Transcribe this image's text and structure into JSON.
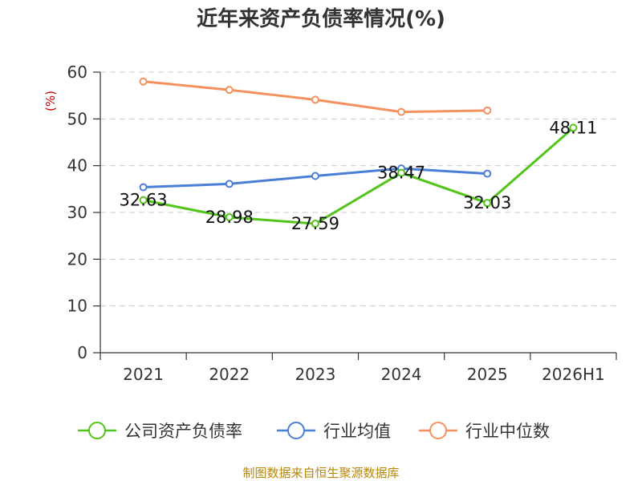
{
  "chart_data": {
    "type": "line",
    "title": "近年来资产负债率情况(%)",
    "unit_label": "(%)",
    "categories": [
      "2021",
      "2022",
      "2023",
      "2024",
      "2025",
      "2026H1"
    ],
    "ylim": [
      0,
      60
    ],
    "yticks": [
      0,
      10,
      20,
      30,
      40,
      50,
      60
    ],
    "grid": true,
    "legend_position": "bottom",
    "series": [
      {
        "name": "公司资产负债率",
        "color": "#52c41a",
        "values": [
          32.63,
          28.98,
          27.59,
          38.47,
          32.03,
          48.11
        ],
        "labels": [
          "32.63",
          "28.98",
          "27.59",
          "38.47",
          "32.03",
          "48.11"
        ]
      },
      {
        "name": "行业均值",
        "color": "#4a7fd8",
        "values": [
          35.4,
          36.1,
          37.8,
          39.4,
          38.3,
          null
        ]
      },
      {
        "name": "行业中位数",
        "color": "#f5915e",
        "values": [
          58.0,
          56.2,
          54.1,
          51.5,
          51.8,
          null
        ]
      }
    ]
  },
  "source": "制图数据来自恒生聚源数据库"
}
